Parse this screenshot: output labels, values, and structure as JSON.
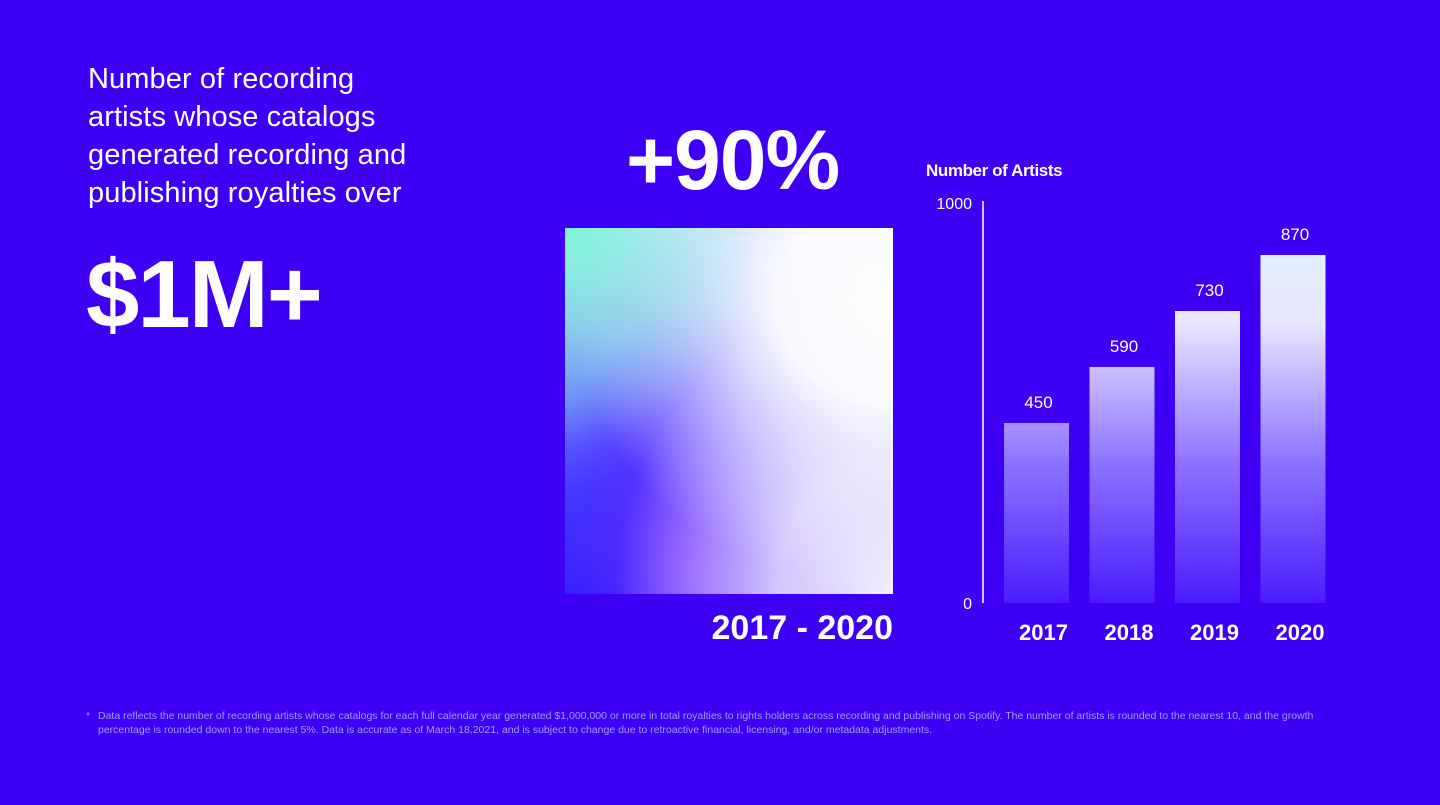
{
  "headline": {
    "lines": [
      "Number of recording",
      "artists whose catalogs",
      "generated recording and",
      "publishing royalties over"
    ],
    "threshold": "$1M+"
  },
  "growth": {
    "value": "+90%",
    "period": "2017 - 2020"
  },
  "chart_data": {
    "type": "bar",
    "title": "",
    "xlabel": "",
    "ylabel": "Number of Artists",
    "ylim": [
      0,
      1000
    ],
    "y_ticks": [
      "0",
      "1000"
    ],
    "categories": [
      "2017",
      "2018",
      "2019",
      "2020"
    ],
    "values": [
      450,
      590,
      730,
      870
    ],
    "data_labels": [
      "450",
      "590",
      "730",
      "870"
    ],
    "grid": false,
    "legend": "none"
  },
  "colors": {
    "background": "#3d00f5",
    "text": "#ffffff",
    "footnote": "#a59cf8",
    "bar_bottom": "#4a1cff",
    "bar_top_2020": "#dff8ff"
  },
  "footnote": {
    "marker": "*",
    "text": "Data reflects the number of recording artists whose catalogs for each full calendar year generated $1,000,000 or more in total royalties to rights holders across recording and publishing on Spotify. The number of artists is rounded to the nearest 10, and the growth percentage is rounded down to the nearest 5%. Data is accurate as of March 18,2021, and is subject to change due to retroactive financial, licensing, and/or metadata adjustments."
  }
}
